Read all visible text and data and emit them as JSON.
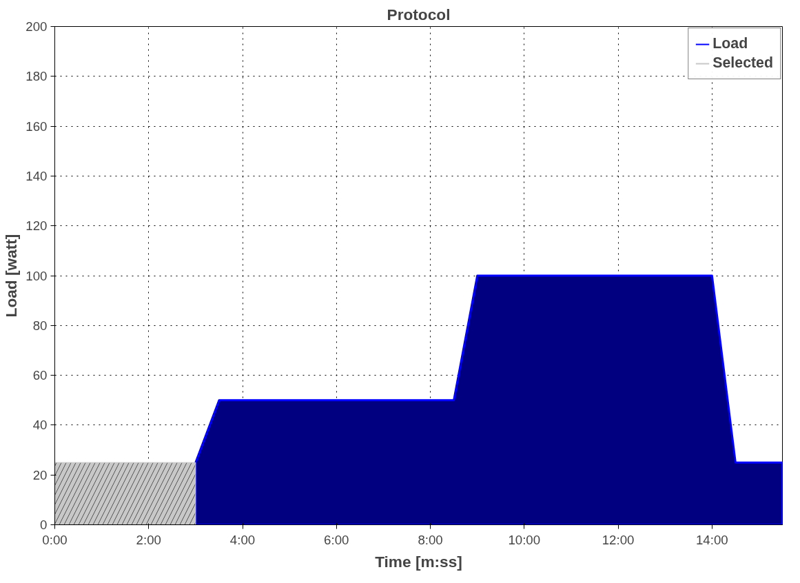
{
  "chart_data": {
    "type": "area",
    "title": "Protocol",
    "xlabel": "Time [m:ss]",
    "ylabel": "Load [watt]",
    "xlim": [
      0,
      15.5
    ],
    "ylim": [
      0,
      200
    ],
    "xticks": [
      {
        "value": 0,
        "label": "0:00"
      },
      {
        "value": 2,
        "label": "2:00"
      },
      {
        "value": 4,
        "label": "4:00"
      },
      {
        "value": 6,
        "label": "6:00"
      },
      {
        "value": 8,
        "label": "8:00"
      },
      {
        "value": 10,
        "label": "10:00"
      },
      {
        "value": 12,
        "label": "12:00"
      },
      {
        "value": 14,
        "label": "14:00"
      }
    ],
    "yticks": [
      0,
      20,
      40,
      60,
      80,
      100,
      120,
      140,
      160,
      180,
      200
    ],
    "grid": true,
    "legend": "top right",
    "series": [
      {
        "name": "Load",
        "color": "#000080",
        "x": [
          3,
          3.5,
          8.5,
          9,
          14,
          14.5,
          15.5
        ],
        "values": [
          25,
          50,
          50,
          100,
          100,
          25,
          25
        ]
      },
      {
        "name": "Selected",
        "color": "#c8c8c8",
        "x": [
          0,
          3
        ],
        "values": [
          25,
          25
        ]
      }
    ]
  }
}
